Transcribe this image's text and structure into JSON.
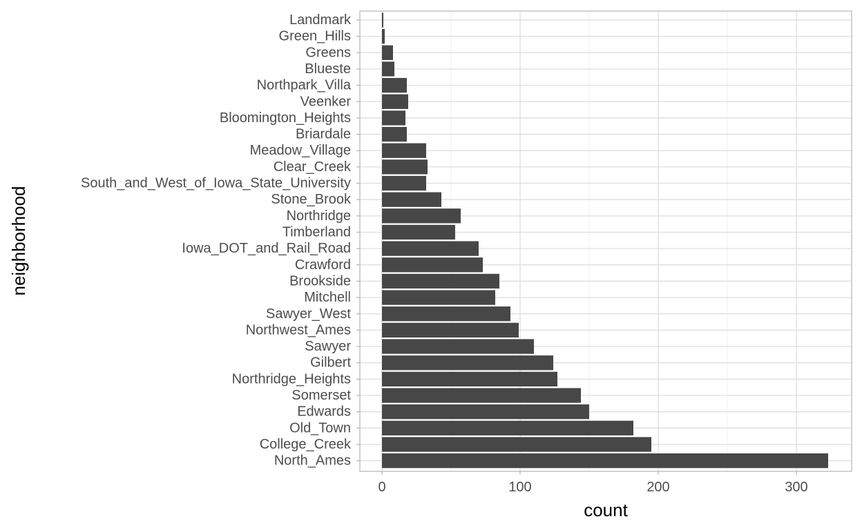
{
  "chart_data": {
    "type": "bar",
    "orientation": "horizontal",
    "xlabel": "count",
    "ylabel": "neighborhood",
    "xlim": [
      -16,
      340
    ],
    "x_ticks": [
      0,
      100,
      200,
      300
    ],
    "grid": true,
    "bar_color": "#474747",
    "categories": [
      "Landmark",
      "Green_Hills",
      "Greens",
      "Blueste",
      "Northpark_Villa",
      "Veenker",
      "Bloomington_Heights",
      "Briardale",
      "Meadow_Village",
      "Clear_Creek",
      "South_and_West_of_Iowa_State_University",
      "Stone_Brook",
      "Northridge",
      "Timberland",
      "Iowa_DOT_and_Rail_Road",
      "Crawford",
      "Brookside",
      "Mitchell",
      "Sawyer_West",
      "Northwest_Ames",
      "Sawyer",
      "Gilbert",
      "Northridge_Heights",
      "Somerset",
      "Edwards",
      "Old_Town",
      "College_Creek",
      "North_Ames"
    ],
    "values": [
      1,
      2,
      8,
      9,
      18,
      19,
      17,
      18,
      32,
      33,
      32,
      43,
      57,
      53,
      70,
      73,
      85,
      82,
      93,
      99,
      110,
      124,
      127,
      144,
      150,
      182,
      195,
      323
    ]
  }
}
